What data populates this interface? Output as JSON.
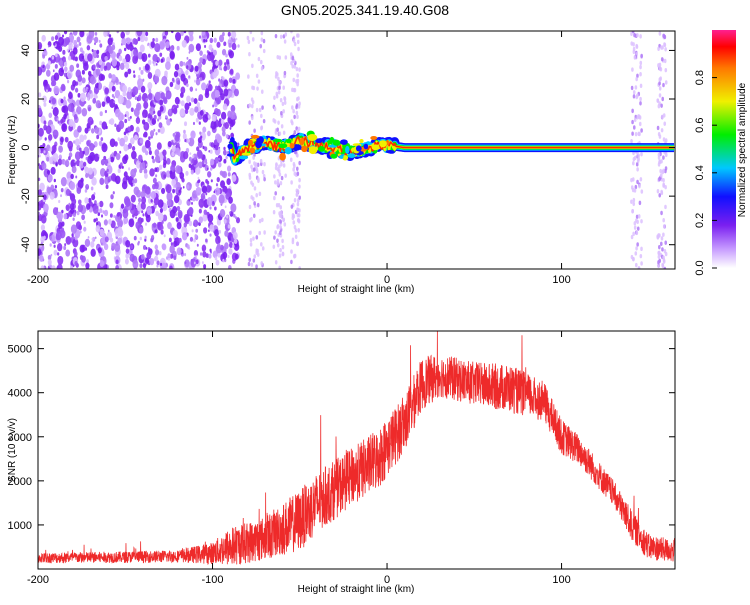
{
  "title": "GN05.2025.341.19.40.G08",
  "chart_data": [
    {
      "type": "heatmap",
      "xlabel": "Height of straight line (km)",
      "ylabel": "Frequency (Hz)",
      "xlim": [
        -200,
        165
      ],
      "ylim": [
        -50,
        48
      ],
      "xticks": [
        -200,
        -100,
        0,
        100
      ],
      "yticks": [
        -40,
        -20,
        0,
        20,
        40
      ],
      "colorbar": {
        "label": "Normalized spectral amplitude",
        "range": [
          0,
          1
        ],
        "ticks": [
          0.0,
          0.2,
          0.4,
          0.6,
          0.8
        ]
      },
      "ridge": [
        {
          "x": -88,
          "f": -5
        },
        {
          "x": -80,
          "f": 0
        },
        {
          "x": -70,
          "f": 2
        },
        {
          "x": -60,
          "f": 0
        },
        {
          "x": -50,
          "f": 3
        },
        {
          "x": -40,
          "f": 1
        },
        {
          "x": -30,
          "f": 0
        },
        {
          "x": -20,
          "f": -2
        },
        {
          "x": -10,
          "f": 0
        },
        {
          "x": 0,
          "f": 1
        },
        {
          "x": 10,
          "f": 0
        },
        {
          "x": 165,
          "f": 0
        }
      ]
    },
    {
      "type": "line",
      "xlabel": "Height of straight line (km)",
      "ylabel": "SNR (10 * v/v)",
      "xlim": [
        -200,
        165
      ],
      "ylim": [
        0,
        5400
      ],
      "xticks": [
        -200,
        -100,
        0,
        100
      ],
      "yticks": [
        1000,
        2000,
        3000,
        4000,
        5000
      ],
      "envelope": {
        "x": [
          -200,
          -150,
          -120,
          -100,
          -90,
          -70,
          -50,
          -40,
          -20,
          -5,
          10,
          20,
          30,
          50,
          70,
          90,
          100,
          110,
          130,
          140,
          150,
          165
        ],
        "mean": [
          250,
          270,
          290,
          360,
          500,
          700,
          1100,
          1500,
          2100,
          2500,
          3300,
          4200,
          4400,
          4200,
          4100,
          3800,
          3000,
          2700,
          1700,
          1000,
          500,
          400
        ],
        "spread": [
          120,
          130,
          140,
          250,
          450,
          500,
          700,
          700,
          650,
          700,
          650,
          600,
          500,
          500,
          550,
          450,
          400,
          350,
          300,
          350,
          300,
          250
        ]
      }
    }
  ]
}
